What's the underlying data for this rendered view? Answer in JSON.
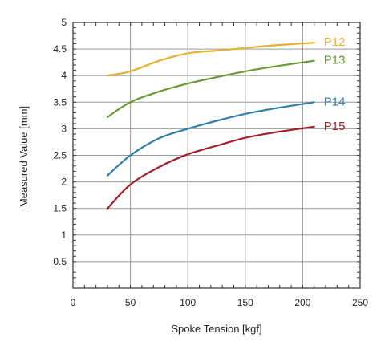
{
  "chart_data": {
    "type": "line",
    "title": "",
    "xlabel": "Spoke Tension [kgf]",
    "ylabel": "Measured Value [mm]",
    "xlim": [
      0,
      250
    ],
    "ylim": [
      0,
      5
    ],
    "x_ticks": [
      0,
      50,
      100,
      150,
      200,
      250
    ],
    "y_ticks": [
      0.5,
      1,
      1.5,
      2,
      2.5,
      3,
      3.5,
      4,
      4.5,
      5
    ],
    "x_tick_labels": [
      "0",
      "50",
      "100",
      "150",
      "200",
      "250"
    ],
    "y_tick_labels": [
      "0.5",
      "1",
      "1.5",
      "2",
      "2.5",
      "3",
      "3.5",
      "4",
      "4.5",
      "5"
    ],
    "grid": true,
    "minor_ticks": true,
    "legend": "inline-right-of-lines",
    "series": [
      {
        "name": "P12",
        "color": "#e8b030",
        "x": [
          30,
          50,
          75,
          100,
          125,
          150,
          175,
          210
        ],
        "y": [
          4.0,
          4.08,
          4.28,
          4.42,
          4.47,
          4.52,
          4.57,
          4.62
        ]
      },
      {
        "name": "P13",
        "color": "#6a9a36",
        "x": [
          30,
          50,
          75,
          100,
          125,
          150,
          175,
          210
        ],
        "y": [
          3.22,
          3.5,
          3.7,
          3.85,
          3.97,
          4.08,
          4.17,
          4.28
        ]
      },
      {
        "name": "P14",
        "color": "#2f7fa8",
        "x": [
          30,
          50,
          75,
          100,
          125,
          150,
          175,
          210
        ],
        "y": [
          2.12,
          2.5,
          2.82,
          3.0,
          3.15,
          3.28,
          3.38,
          3.5
        ]
      },
      {
        "name": "P15",
        "color": "#a3202a",
        "x": [
          30,
          50,
          75,
          100,
          125,
          150,
          175,
          210
        ],
        "y": [
          1.5,
          1.95,
          2.28,
          2.52,
          2.68,
          2.83,
          2.93,
          3.04
        ]
      }
    ]
  }
}
